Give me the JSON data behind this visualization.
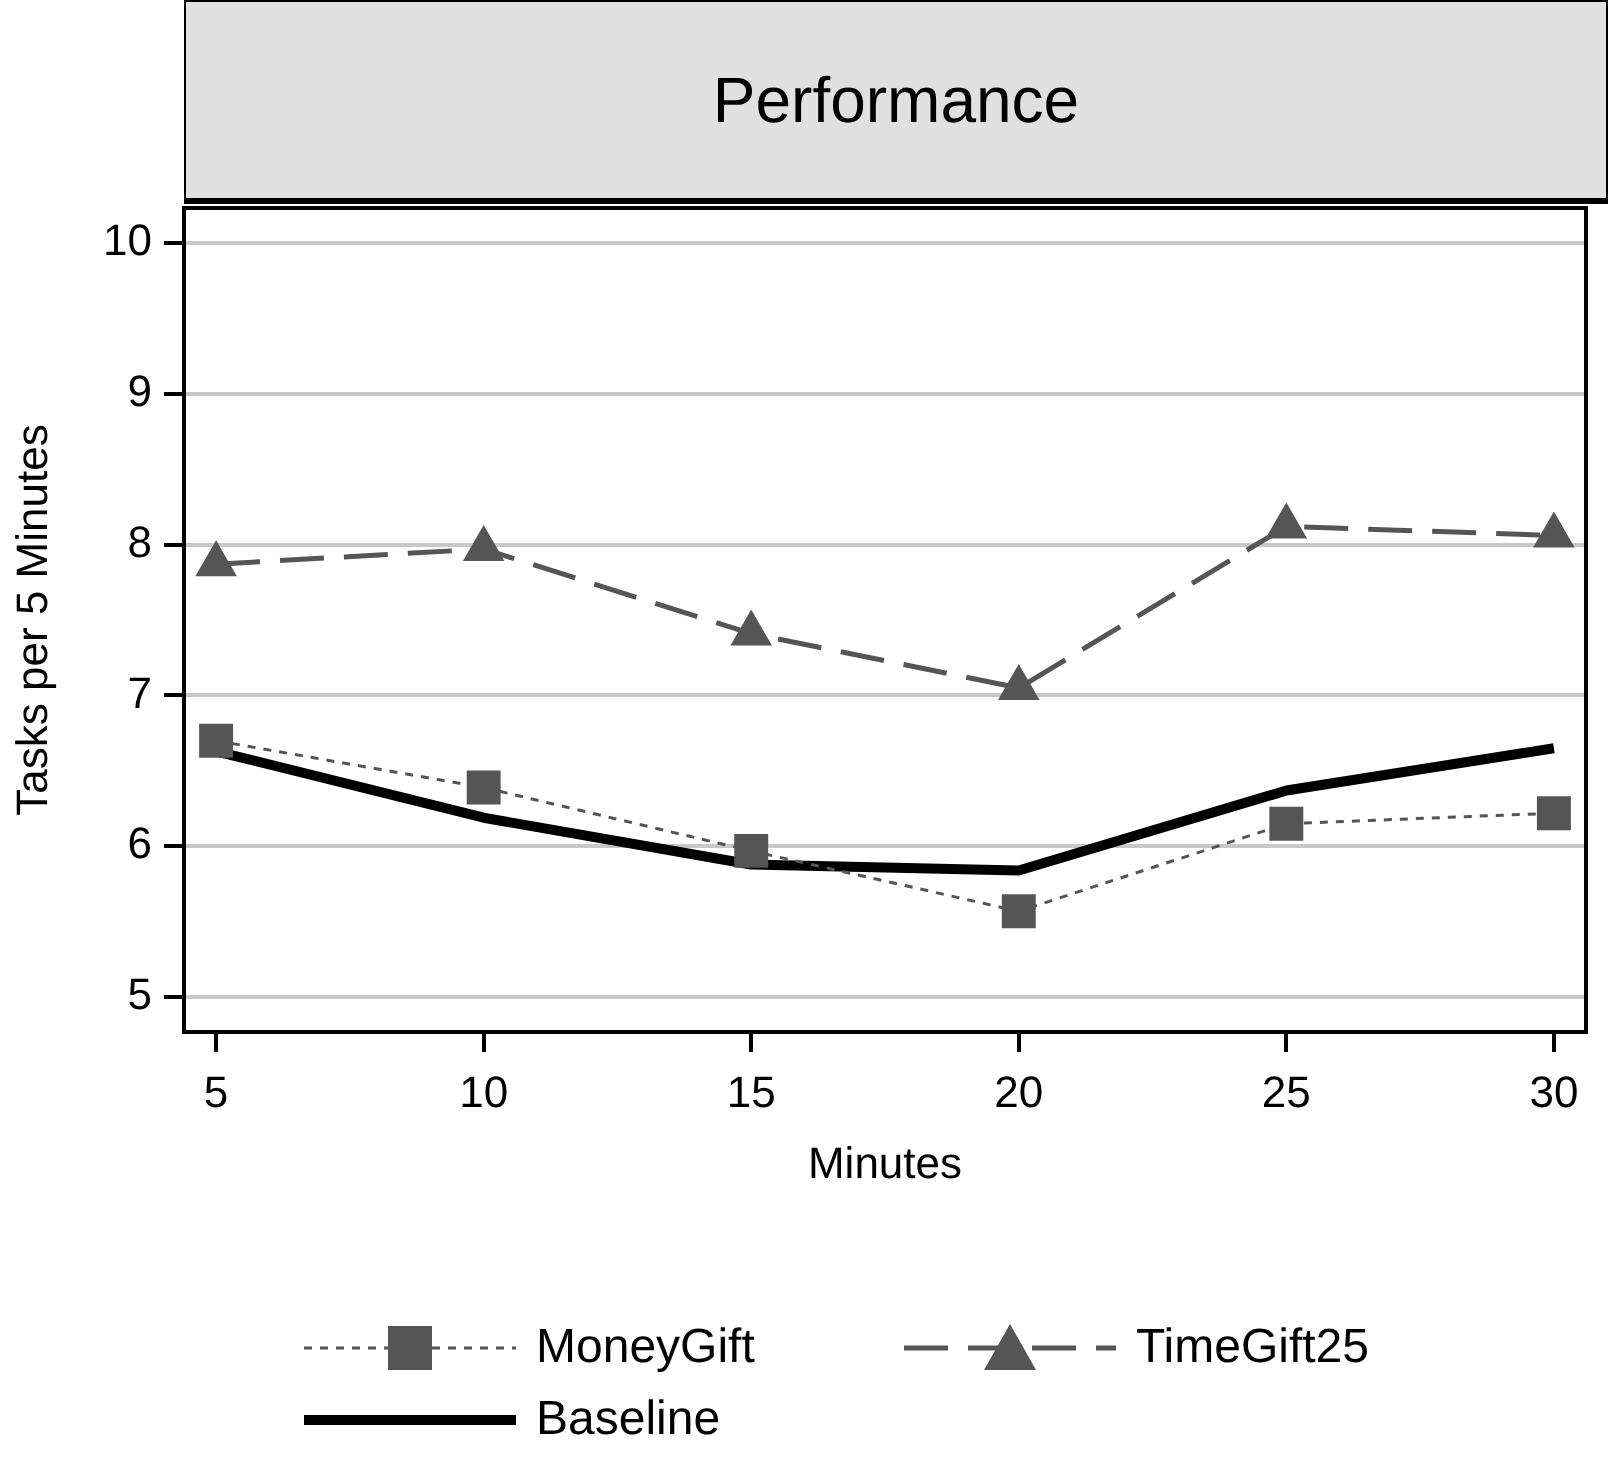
{
  "chart_data": {
    "type": "line",
    "title": "Performance",
    "xlabel": "Minutes",
    "ylabel": "Tasks per 5 Minutes",
    "x": [
      5,
      10,
      15,
      20,
      25,
      30
    ],
    "series": [
      {
        "name": "MoneyGift",
        "color": "#555555",
        "marker": "square",
        "line_style": "dotted",
        "values": [
          6.7,
          6.39,
          5.97,
          5.57,
          6.15,
          6.22
        ]
      },
      {
        "name": "TimeGift25",
        "color": "#555555",
        "marker": "triangle",
        "line_style": "dashed",
        "values": [
          7.87,
          7.97,
          7.41,
          7.05,
          8.12,
          8.06
        ]
      },
      {
        "name": "Baseline",
        "color": "#000000",
        "marker": "none",
        "line_style": "solid",
        "values": [
          6.63,
          6.19,
          5.88,
          5.84,
          6.37,
          6.65
        ]
      }
    ],
    "xlim": [
      4.4,
      30.6
    ],
    "xticks": [
      5,
      10,
      15,
      20,
      25,
      30
    ],
    "ylim": [
      4.77,
      10.23
    ],
    "yticks": [
      5,
      6,
      7,
      8,
      9,
      10
    ],
    "grid": "y",
    "legend": "bottom"
  }
}
